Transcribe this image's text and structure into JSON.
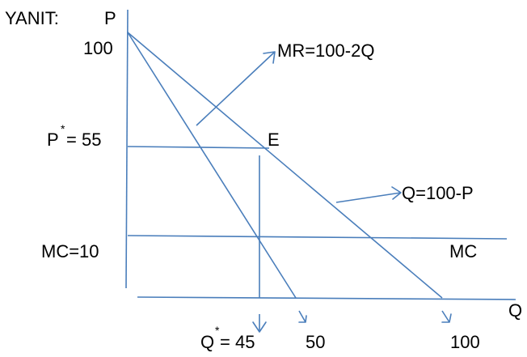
{
  "heading": "YANIT:",
  "axes": {
    "y_label": "P",
    "x_label": "Q"
  },
  "price_labels": {
    "p_intercept": "100",
    "p_star": "P",
    "p_star_sup": "*",
    "p_star_value": "= 55",
    "mc_left": "MC=10"
  },
  "curve_labels": {
    "mr": "MR=100-2Q",
    "demand": "Q=100-P",
    "mc_right": "MC",
    "equilibrium": "E"
  },
  "quantity_labels": {
    "q_star": "Q",
    "q_star_sup": "*",
    "q_star_value": "= 45",
    "mr_intercept": "50",
    "demand_intercept": "100"
  },
  "colors": {
    "line": "#4a7ebb",
    "text": "#000000"
  }
}
